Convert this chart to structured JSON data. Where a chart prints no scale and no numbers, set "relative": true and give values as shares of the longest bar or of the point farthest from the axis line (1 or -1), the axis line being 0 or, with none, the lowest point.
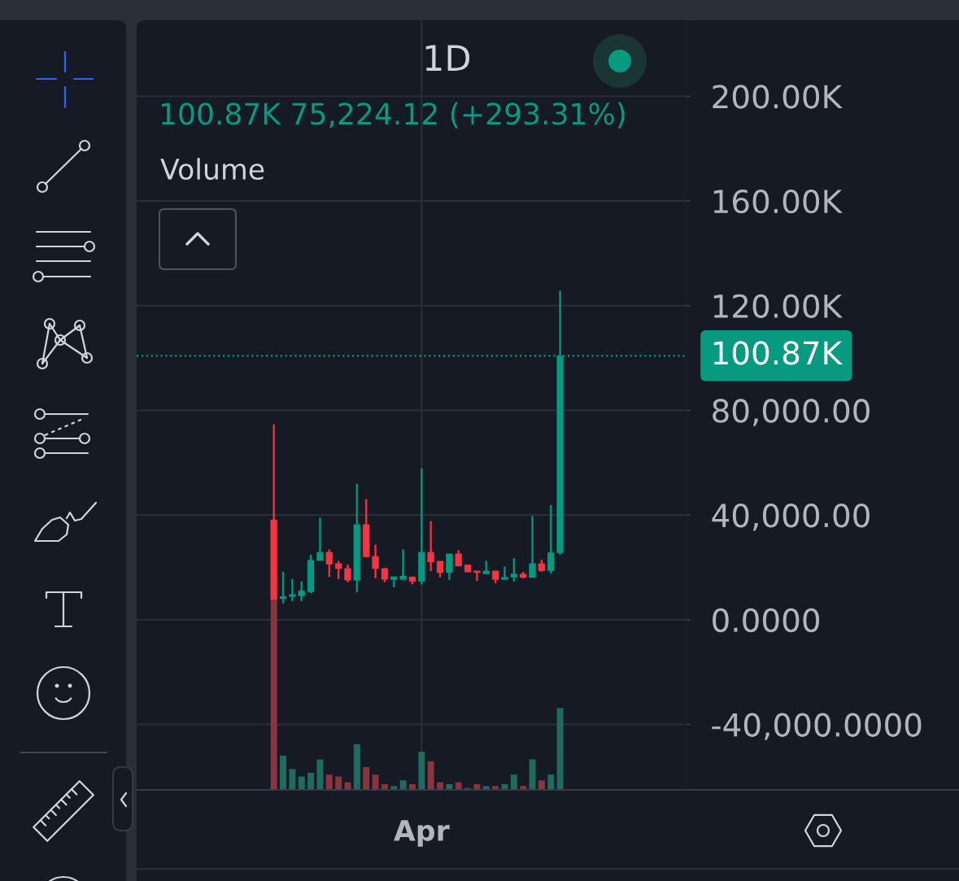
{
  "chart_data": [
    {
      "type": "candlestick",
      "title": "1D",
      "subtitle": "100.87K 75,224.12 (+293.31%)",
      "categories": [
        null,
        null,
        null,
        null,
        null,
        null,
        null,
        null,
        null,
        null,
        null,
        null,
        null,
        null,
        null,
        null,
        "Apr",
        null,
        null,
        null,
        null,
        null,
        null,
        null,
        null,
        null,
        null,
        null,
        null,
        null,
        null,
        null
      ],
      "ohlc": [
        [
          38200,
          74600,
          7600,
          7600
        ],
        [
          8000,
          18300,
          6300,
          8900
        ],
        [
          8900,
          15500,
          7200,
          9700
        ],
        [
          9100,
          14600,
          7200,
          11100
        ],
        [
          10600,
          24800,
          10200,
          22700
        ],
        [
          22600,
          38900,
          22600,
          25800
        ],
        [
          25800,
          26800,
          16400,
          21200
        ],
        [
          21500,
          22400,
          15600,
          19500
        ],
        [
          19600,
          21000,
          14400,
          15100
        ],
        [
          15000,
          51900,
          10500,
          36400
        ],
        [
          36400,
          46000,
          24000,
          24000
        ],
        [
          24300,
          28600,
          15900,
          19500
        ],
        [
          19600,
          19800,
          14400,
          15400
        ],
        [
          15300,
          16500,
          12500,
          16500
        ],
        [
          15300,
          26800,
          15300,
          16700
        ],
        [
          16400,
          16400,
          13600,
          14600
        ],
        [
          14600,
          57800,
          13500,
          25800
        ],
        [
          25800,
          37600,
          18700,
          22000
        ],
        [
          22400,
          22400,
          16300,
          18000
        ],
        [
          18000,
          25200,
          15300,
          25200
        ],
        [
          25200,
          26500,
          20500,
          20500
        ],
        [
          21000,
          21000,
          18200,
          18200
        ],
        [
          18700,
          18700,
          14900,
          18000
        ],
        [
          17500,
          22400,
          17500,
          18700
        ],
        [
          18700,
          18700,
          14000,
          15300
        ],
        [
          15300,
          20300,
          15300,
          16300
        ],
        [
          16300,
          23400,
          14600,
          17500
        ],
        [
          17500,
          18200,
          15800,
          16100
        ],
        [
          16100,
          39500,
          16100,
          21500
        ],
        [
          21500,
          22900,
          18400,
          18700
        ],
        [
          18700,
          43800,
          17700,
          25650
        ],
        [
          25500,
          125600,
          24900,
          100870
        ]
      ],
      "colors": [
        "#f23645",
        "#089981",
        "#089981",
        "#089981",
        "#089981",
        "#089981",
        "#f23645",
        "#f23645",
        "#f23645",
        "#089981",
        "#f23645",
        "#f23645",
        "#f23645",
        "#089981",
        "#089981",
        "#f23645",
        "#089981",
        "#f23645",
        "#f23645",
        "#089981",
        "#f23645",
        "#f23645",
        "#f23645",
        "#089981",
        "#f23645",
        "#089981",
        "#089981",
        "#f23645",
        "#089981",
        "#f23645",
        "#089981",
        "#089981"
      ],
      "ylim": [
        -65000,
        229000
      ],
      "yticks": [
        {
          "value": -40000,
          "label": "-40,000.0000"
        },
        {
          "value": 0,
          "label": "0.0000"
        },
        {
          "value": 40000,
          "label": "40,000.00"
        },
        {
          "value": 80000,
          "label": "80,000.00"
        },
        {
          "value": 120000,
          "label": "120.00K"
        },
        {
          "value": 160000,
          "label": "160.00K"
        },
        {
          "value": 200000,
          "label": "200.00K"
        }
      ],
      "grid": true,
      "ref_lines": [
        {
          "axis": "y",
          "value": 100870,
          "label": "100.87K",
          "color": "#089981",
          "line_style": "dotted"
        }
      ]
    },
    {
      "type": "bar",
      "title": "Volume",
      "categories": [
        null,
        null,
        null,
        null,
        null,
        null,
        null,
        null,
        null,
        null,
        null,
        null,
        null,
        null,
        null,
        null,
        null,
        null,
        null,
        null,
        null,
        null,
        null,
        null,
        null,
        null,
        null,
        null,
        null,
        null,
        null,
        null
      ],
      "values": [
        1,
        0.18,
        0.11,
        0.07,
        0.09,
        0.16,
        0.08,
        0.07,
        0.04,
        0.24,
        0.12,
        0.08,
        0.03,
        0.02,
        0.05,
        0.03,
        0.2,
        0.15,
        0.04,
        0.03,
        0.04,
        0.01,
        0.03,
        0.02,
        0.02,
        0.03,
        0.08,
        0.02,
        0.16,
        0.05,
        0.08,
        0.43
      ],
      "colors": [
        "#8a3440",
        "#1f6b5f",
        "#1f6b5f",
        "#1f6b5f",
        "#1f6b5f",
        "#1f6b5f",
        "#8a3440",
        "#8a3440",
        "#8a3440",
        "#1f6b5f",
        "#8a3440",
        "#8a3440",
        "#8a3440",
        "#1f6b5f",
        "#1f6b5f",
        "#8a3440",
        "#1f6b5f",
        "#8a3440",
        "#8a3440",
        "#1f6b5f",
        "#8a3440",
        "#8a3440",
        "#8a3440",
        "#1f6b5f",
        "#8a3440",
        "#1f6b5f",
        "#1f6b5f",
        "#8a3440",
        "#1f6b5f",
        "#8a3440",
        "#1f6b5f",
        "#1f6b5f"
      ],
      "relative": true
    }
  ]
}
